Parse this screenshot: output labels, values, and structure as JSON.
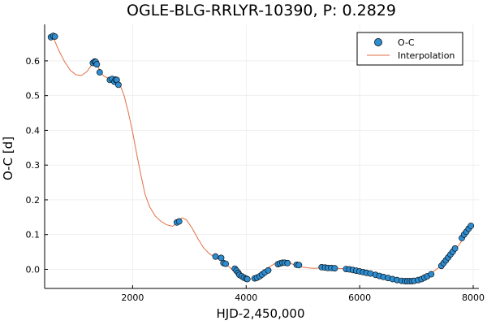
{
  "chart_data": {
    "type": "scatter",
    "title": "OGLE-BLG-RRLYR-10390, P: 0.2829",
    "xlabel": "HJD-2,450,000",
    "ylabel": "O-C [d]",
    "xlim": [
      450,
      8100
    ],
    "ylim": [
      -0.055,
      0.705
    ],
    "xticks": [
      2000,
      4000,
      6000,
      8000
    ],
    "yticks": [
      0.0,
      0.1,
      0.2,
      0.3,
      0.4,
      0.5,
      0.6
    ],
    "grid": true,
    "legend_position": "top-right",
    "marker_color": "#2e8ccf",
    "line_color": "#e26f46",
    "series": [
      {
        "name": "O-C",
        "kind": "scatter",
        "x": [
          560,
          600,
          630,
          1300,
          1330,
          1350,
          1370,
          1420,
          1600,
          1640,
          1680,
          1700,
          1720,
          1750,
          2780,
          2820,
          3460,
          3560,
          3600,
          3640,
          3800,
          3830,
          3860,
          3880,
          3920,
          3960,
          4000,
          4020,
          4150,
          4190,
          4240,
          4280,
          4330,
          4390,
          4560,
          4600,
          4640,
          4680,
          4730,
          4890,
          4930,
          5330,
          5390,
          5440,
          5500,
          5560,
          5760,
          5820,
          5880,
          5940,
          6000,
          6060,
          6120,
          6190,
          6280,
          6350,
          6420,
          6500,
          6580,
          6660,
          6740,
          6800,
          6840,
          6880,
          6920,
          6960,
          7030,
          7090,
          7140,
          7190,
          7260,
          7440,
          7480,
          7520,
          7560,
          7600,
          7640,
          7680,
          7800,
          7840,
          7880,
          7920,
          7960
        ],
        "y": [
          0.668,
          0.672,
          0.67,
          0.594,
          0.598,
          0.597,
          0.59,
          0.567,
          0.545,
          0.548,
          0.54,
          0.546,
          0.545,
          0.531,
          0.135,
          0.138,
          0.037,
          0.033,
          0.018,
          0.016,
          0.002,
          -0.004,
          -0.01,
          -0.016,
          -0.02,
          -0.024,
          -0.027,
          -0.028,
          -0.026,
          -0.024,
          -0.02,
          -0.015,
          -0.009,
          -0.003,
          0.015,
          0.017,
          0.019,
          0.019,
          0.018,
          0.013,
          0.012,
          0.006,
          0.005,
          0.004,
          0.004,
          0.003,
          0.001,
          0.0,
          -0.002,
          -0.004,
          -0.006,
          -0.008,
          -0.01,
          -0.012,
          -0.016,
          -0.019,
          -0.022,
          -0.025,
          -0.028,
          -0.031,
          -0.033,
          -0.034,
          -0.034,
          -0.034,
          -0.034,
          -0.033,
          -0.031,
          -0.028,
          -0.024,
          -0.02,
          -0.014,
          0.01,
          0.018,
          0.026,
          0.034,
          0.043,
          0.051,
          0.06,
          0.09,
          0.1,
          0.108,
          0.117,
          0.125
        ]
      },
      {
        "name": "Interpolation",
        "kind": "line",
        "x": [
          560,
          620,
          700,
          800,
          900,
          1000,
          1100,
          1200,
          1280,
          1330,
          1380,
          1430,
          1500,
          1580,
          1650,
          1720,
          1780,
          1850,
          1920,
          2000,
          2080,
          2150,
          2220,
          2300,
          2400,
          2500,
          2600,
          2700,
          2780,
          2830,
          2880,
          2950,
          3050,
          3150,
          3250,
          3350,
          3450,
          3550,
          3650,
          3750,
          3850,
          3950,
          4020,
          4100,
          4200,
          4300,
          4400,
          4500,
          4600,
          4680,
          4750,
          4820,
          4900,
          5000,
          5100,
          5200,
          5300,
          5400,
          5500,
          5600,
          5700,
          5800,
          5900,
          6000,
          6100,
          6200,
          6300,
          6400,
          6500,
          6600,
          6700,
          6800,
          6880,
          6960,
          7050,
          7150,
          7250,
          7350,
          7450,
          7550,
          7650,
          7750,
          7850,
          7960
        ],
        "y": [
          0.668,
          0.66,
          0.63,
          0.598,
          0.573,
          0.56,
          0.558,
          0.57,
          0.589,
          0.598,
          0.59,
          0.567,
          0.555,
          0.55,
          0.545,
          0.538,
          0.53,
          0.5,
          0.455,
          0.395,
          0.325,
          0.268,
          0.215,
          0.18,
          0.153,
          0.138,
          0.128,
          0.124,
          0.133,
          0.145,
          0.148,
          0.142,
          0.118,
          0.088,
          0.062,
          0.045,
          0.035,
          0.026,
          0.014,
          0.0,
          -0.013,
          -0.024,
          -0.028,
          -0.027,
          -0.02,
          -0.008,
          0.006,
          0.016,
          0.02,
          0.021,
          0.019,
          0.015,
          0.01,
          0.006,
          0.004,
          0.003,
          0.004,
          0.005,
          0.004,
          0.003,
          0.002,
          0.0,
          -0.003,
          -0.006,
          -0.01,
          -0.013,
          -0.017,
          -0.021,
          -0.025,
          -0.029,
          -0.032,
          -0.034,
          -0.034,
          -0.033,
          -0.03,
          -0.023,
          -0.013,
          0.0,
          0.012,
          0.03,
          0.05,
          0.07,
          0.095,
          0.125
        ]
      }
    ]
  }
}
